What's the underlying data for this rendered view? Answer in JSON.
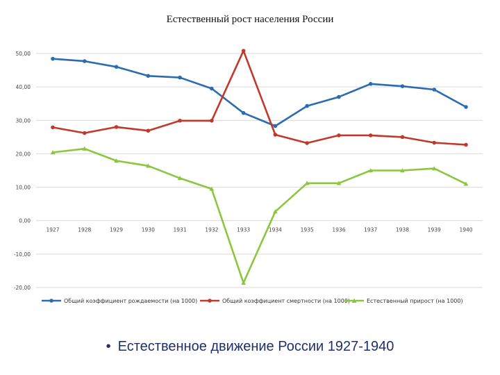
{
  "chart_data": {
    "type": "line",
    "title": "Естественный рост населения России",
    "x": [
      "1927",
      "1928",
      "1929",
      "1930",
      "1931",
      "1932",
      "1933",
      "1934",
      "1935",
      "1936",
      "1937",
      "1938",
      "1939",
      "1940"
    ],
    "ylim": [
      -20,
      50
    ],
    "yticks": [
      "50,00",
      "40,00",
      "30,00",
      "20,00",
      "10,00",
      "0,00",
      "-10,00",
      "-20,00"
    ],
    "grid": true,
    "legend_position": "bottom",
    "series": [
      {
        "name": "Общий коэффициент рождаемости (на 1000)",
        "color": "#2b6cb0",
        "marker": "circle",
        "values": [
          48.4,
          47.7,
          46.0,
          43.3,
          42.8,
          39.5,
          32.2,
          28.3,
          34.3,
          37.0,
          40.9,
          40.2,
          39.2,
          34.0
        ]
      },
      {
        "name": "Общий коэффициент смертности (на 1000)",
        "color": "#c0392b",
        "marker": "circle",
        "values": [
          27.9,
          26.2,
          28.0,
          26.9,
          29.9,
          29.9,
          50.8,
          25.7,
          23.2,
          25.5,
          25.5,
          25.0,
          23.3,
          22.7
        ]
      },
      {
        "name": "Естественный прирост (на 1000)",
        "color": "#8cc63f",
        "marker": "triangle",
        "values": [
          20.4,
          21.5,
          17.9,
          16.4,
          12.7,
          9.5,
          -18.6,
          2.7,
          11.2,
          11.2,
          15.0,
          15.0,
          15.6,
          11.0
        ]
      }
    ]
  },
  "caption": {
    "bullet": "•",
    "text": "Естественное движение России 1927-1940"
  }
}
